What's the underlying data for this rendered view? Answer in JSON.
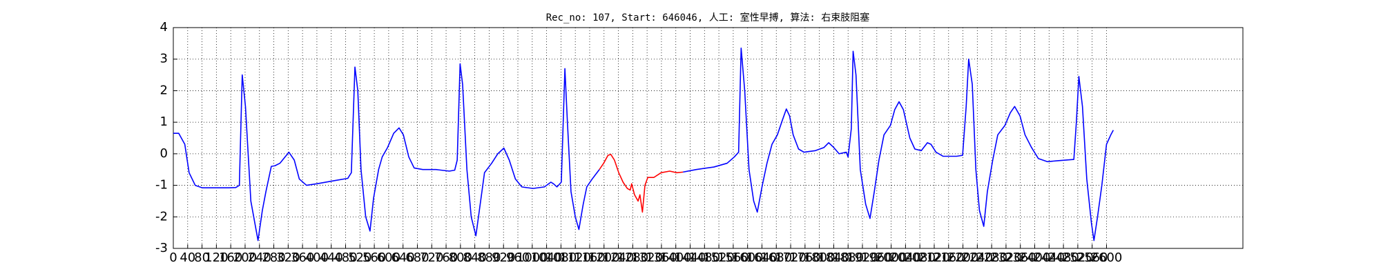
{
  "chart_data": {
    "type": "line",
    "title": "Rec_no: 107, Start: 646046, 人工: 室性早搏, 算法: 右束肢阻塞",
    "series": [
      {
        "color": "#0000ff",
        "x": [
          0,
          15,
          32,
          44,
          61,
          81,
          155,
          174,
          184,
          192,
          201,
          216,
          236,
          248,
          258,
          273,
          283,
          297,
          322,
          337,
          351,
          371,
          400,
          450,
          486,
          496,
          506,
          514,
          523,
          536,
          548,
          558,
          572,
          582,
          597,
          614,
          629,
          641,
          656,
          671,
          695,
          732,
          769,
          784,
          791,
          799,
          806,
          818,
          830,
          843,
          855,
          867,
          887,
          904,
          921,
          936,
          953,
          971,
          1002,
          1034,
          1052,
          1059,
          1069,
          1081,
          1091,
          1098,
          1108,
          1120,
          1130,
          1142,
          1152,
          1167,
          1187,
          1300,
          1420,
          1457,
          1506,
          1543,
          1563,
          1575,
          1582,
          1592,
          1604,
          1617,
          1627,
          1641,
          1654,
          1668,
          1683,
          1698,
          1708,
          1717,
          1727,
          1742,
          1757,
          1789,
          1813,
          1826,
          1840,
          1855,
          1875,
          1880,
          1889,
          1894,
          1902,
          1914,
          1929,
          1941,
          1953,
          1966,
          1980,
          1998,
          2010,
          2022,
          2034,
          2052,
          2066,
          2084,
          2101,
          2111,
          2125,
          2145,
          2182,
          2199,
          2209,
          2216,
          2226,
          2236,
          2246,
          2258,
          2268,
          2283,
          2297,
          2317,
          2332,
          2344,
          2359,
          2373,
          2391,
          2410,
          2435,
          2464,
          2509,
          2516,
          2523,
          2533,
          2545,
          2558,
          2565,
          2575,
          2587,
          2600,
          2612,
          2619
        ],
        "values": [
          0.65,
          0.65,
          0.3,
          -0.6,
          -1.0,
          -1.08,
          -1.08,
          -1.07,
          -1.0,
          2.5,
          1.5,
          -1.5,
          -2.75,
          -1.8,
          -1.2,
          -0.4,
          -0.38,
          -0.3,
          0.05,
          -0.2,
          -0.8,
          -1.0,
          -0.95,
          -0.85,
          -0.78,
          -0.6,
          2.75,
          2.0,
          -0.5,
          -2.0,
          -2.45,
          -1.4,
          -0.5,
          -0.1,
          0.2,
          0.65,
          0.82,
          0.6,
          -0.1,
          -0.45,
          -0.5,
          -0.5,
          -0.55,
          -0.52,
          -0.2,
          2.85,
          2.2,
          -0.5,
          -2.0,
          -2.6,
          -1.6,
          -0.6,
          -0.3,
          0.0,
          0.18,
          -0.2,
          -0.8,
          -1.05,
          -1.1,
          -1.05,
          -0.9,
          -0.95,
          -1.05,
          -0.9,
          2.7,
          1.0,
          -1.2,
          -2.0,
          -2.4,
          -1.6,
          -1.05,
          -0.8,
          -0.5,
          null,
          -0.58,
          -0.5,
          -0.42,
          -0.3,
          -0.1,
          0.05,
          3.35,
          2.0,
          -0.5,
          -1.5,
          -1.85,
          -1.0,
          -0.3,
          0.3,
          0.6,
          1.1,
          1.42,
          1.2,
          0.6,
          0.15,
          0.05,
          0.1,
          0.2,
          0.35,
          0.2,
          0.0,
          0.05,
          -0.1,
          0.8,
          3.25,
          2.5,
          -0.5,
          -1.6,
          -2.05,
          -1.2,
          -0.2,
          0.6,
          0.9,
          1.4,
          1.65,
          1.4,
          0.5,
          0.15,
          0.1,
          0.35,
          0.3,
          0.05,
          -0.08,
          -0.08,
          -0.05,
          1.5,
          3.0,
          2.2,
          -0.5,
          -1.8,
          -2.3,
          -1.2,
          -0.2,
          0.6,
          0.9,
          1.3,
          1.5,
          1.2,
          0.6,
          0.2,
          -0.15,
          -0.25,
          -0.22,
          -0.18,
          1.0,
          2.45,
          1.5,
          -0.8,
          -2.2,
          -2.75,
          -2.0,
          -1.0,
          0.3,
          0.6,
          0.75
        ]
      },
      {
        "color": "#ff0000",
        "x": [
          1187,
          1199,
          1211,
          1219,
          1229,
          1241,
          1253,
          1265,
          1273,
          1277,
          1285,
          1295,
          1300,
          1307,
          1314,
          1322,
          1339,
          1359,
          1383,
          1403,
          1420
        ],
        "values": [
          -0.5,
          -0.3,
          -0.05,
          -0.02,
          -0.2,
          -0.6,
          -0.9,
          -1.1,
          -1.15,
          -0.95,
          -1.3,
          -1.5,
          -1.3,
          -1.85,
          -1.0,
          -0.75,
          -0.75,
          -0.6,
          -0.55,
          -0.6,
          -0.58
        ]
      }
    ],
    "xlim": [
      0,
      2980
    ],
    "xticks": [
      0,
      40,
      80,
      120,
      160,
      200,
      240,
      280,
      320,
      360,
      400,
      440,
      480,
      520,
      560,
      600,
      640,
      680,
      720,
      760,
      800,
      840,
      880,
      920,
      960,
      1000,
      1040,
      1080,
      1120,
      1160,
      1200,
      1240,
      1280,
      1320,
      1360,
      1400,
      1440,
      1480,
      1520,
      1560,
      1600,
      1640,
      1680,
      1720,
      1760,
      1800,
      1840,
      1880,
      1920,
      1960,
      2000,
      2040,
      2080,
      2120,
      2160,
      2200,
      2240,
      2280,
      2320,
      2360,
      2400,
      2440,
      2480,
      2520,
      2560,
      2600
    ],
    "ylim": [
      -3,
      4
    ],
    "yticks": [
      -3,
      -2,
      -1,
      0,
      1,
      2,
      3,
      4
    ],
    "grid": true
  }
}
